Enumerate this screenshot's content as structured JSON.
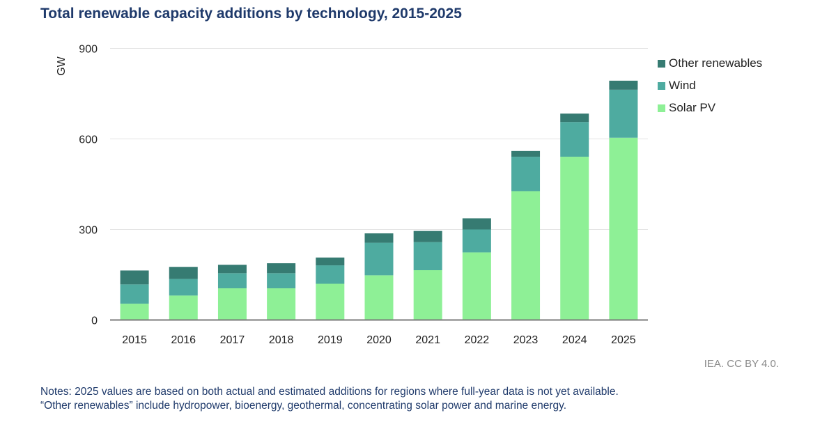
{
  "title": "Total renewable capacity additions by technology, 2015-2025",
  "credit": "IEA. CC BY 4.0.",
  "notes": [
    "Notes: 2025 values are based on both actual and estimated additions for regions where full-year data is not yet available.",
    "“Other renewables” include hydropower, bioenergy, geothermal, concentrating solar power and marine energy."
  ],
  "chart_data": {
    "type": "bar",
    "stacked": true,
    "title": "Total renewable capacity additions by technology, 2015-2025",
    "ylabel": "GW",
    "xlabel": "",
    "ylim": [
      0,
      900
    ],
    "yticks": [
      0,
      300,
      600,
      900
    ],
    "grid": true,
    "legend_position": "right",
    "categories": [
      "2015",
      "2016",
      "2017",
      "2018",
      "2019",
      "2020",
      "2021",
      "2022",
      "2023",
      "2024",
      "2025"
    ],
    "series": [
      {
        "name": "Solar PV",
        "color": "#8ef096",
        "values": [
          54,
          81,
          105,
          105,
          120,
          148,
          165,
          224,
          427,
          541,
          604
        ]
      },
      {
        "name": "Wind",
        "color": "#4eaba0",
        "values": [
          64,
          55,
          50,
          50,
          61,
          108,
          93,
          76,
          114,
          115,
          159
        ]
      },
      {
        "name": "Other renewables",
        "color": "#367b72",
        "values": [
          46,
          40,
          28,
          33,
          26,
          31,
          37,
          37,
          19,
          28,
          30
        ]
      }
    ]
  }
}
